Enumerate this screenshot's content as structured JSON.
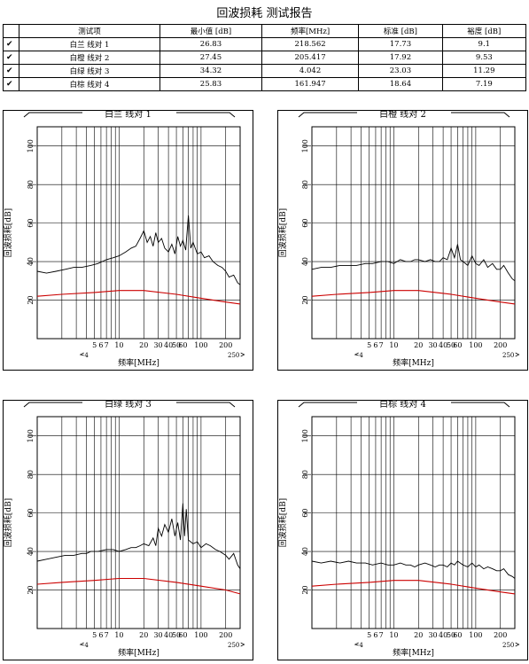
{
  "page_title": "回波损耗 测试报告",
  "table": {
    "headers": [
      "测试项",
      "最小值 [dB]",
      "频率[MHz]",
      "标准 [dB]",
      "裕度 [dB]"
    ],
    "rows": [
      {
        "check": "✔",
        "item": "白兰 线对 1",
        "min": "26.83",
        "freq": "218.562",
        "limit": "17.73",
        "margin": "9.1"
      },
      {
        "check": "✔",
        "item": "白橙 线对 2",
        "min": "27.45",
        "freq": "205.417",
        "limit": "17.92",
        "margin": "9.53"
      },
      {
        "check": "✔",
        "item": "白绿 线对 3",
        "min": "34.32",
        "freq": "4.042",
        "limit": "23.03",
        "margin": "11.29"
      },
      {
        "check": "✔",
        "item": "白棕 线对 4",
        "min": "25.83",
        "freq": "161.947",
        "limit": "18.64",
        "margin": "7.19"
      }
    ]
  },
  "chart_data": [
    {
      "type": "line",
      "title": "白兰 线对 1",
      "xlabel": "频率[MHz]",
      "ylabel": "回波损耗[dB]",
      "x_scale": "log",
      "xlim": [
        1,
        300
      ],
      "ylim": [
        0,
        110
      ],
      "x_tick_labels": [
        "5",
        "6",
        "7",
        "10",
        "20",
        "30",
        "40",
        "50",
        "60",
        "100",
        "200"
      ],
      "x_tick_values": [
        5,
        6,
        7,
        10,
        20,
        30,
        40,
        50,
        60,
        100,
        200
      ],
      "x_extra_labels": [
        {
          "label": "4",
          "value": 4
        },
        {
          "label": "250",
          "value": 250
        }
      ],
      "y_tick_labels": [
        "20",
        "40",
        "60",
        "80",
        "100"
      ],
      "y_tick_values": [
        20,
        40,
        60,
        80,
        100
      ],
      "series": [
        {
          "color": "#000000",
          "x": [
            1,
            1.3,
            1.7,
            2.2,
            2.8,
            3.5,
            4.5,
            5.5,
            7,
            8.5,
            10,
            12,
            14,
            16,
            18,
            20,
            22,
            24,
            26,
            28,
            30,
            33,
            36,
            40,
            44,
            48,
            52,
            56,
            60,
            65,
            70,
            75,
            80,
            90,
            100,
            110,
            125,
            140,
            160,
            180,
            200,
            220,
            250,
            280,
            300
          ],
          "y": [
            35,
            34,
            35,
            36,
            37,
            37,
            38,
            39,
            41,
            42,
            43,
            45,
            47,
            48,
            52,
            56,
            50,
            53,
            48,
            55,
            50,
            52,
            47,
            45,
            49,
            44,
            53,
            48,
            51,
            46,
            64,
            47,
            50,
            44,
            45,
            42,
            43,
            40,
            38,
            37,
            35,
            32,
            33,
            29,
            28
          ]
        },
        {
          "color": "#cc0000",
          "x": [
            1,
            2,
            5,
            10,
            20,
            50,
            100,
            200,
            300
          ],
          "y": [
            22,
            23,
            24,
            25,
            25,
            23,
            21,
            19,
            18
          ]
        }
      ]
    },
    {
      "type": "line",
      "title": "白橙 线对 2",
      "xlabel": "频率[MHz]",
      "ylabel": "回波损耗[dB]",
      "x_scale": "log",
      "xlim": [
        1,
        300
      ],
      "ylim": [
        0,
        110
      ],
      "x_tick_labels": [
        "5",
        "6",
        "7",
        "10",
        "20",
        "30",
        "40",
        "50",
        "60",
        "100",
        "200"
      ],
      "x_tick_values": [
        5,
        6,
        7,
        10,
        20,
        30,
        40,
        50,
        60,
        100,
        200
      ],
      "x_extra_labels": [
        {
          "label": "4",
          "value": 4
        },
        {
          "label": "250",
          "value": 250
        }
      ],
      "y_tick_labels": [
        "20",
        "40",
        "60",
        "80",
        "100"
      ],
      "y_tick_values": [
        20,
        40,
        60,
        80,
        100
      ],
      "series": [
        {
          "color": "#000000",
          "x": [
            1,
            1.3,
            1.7,
            2.2,
            2.8,
            3.5,
            4.5,
            5.5,
            7,
            8.5,
            10,
            12,
            14,
            16,
            18,
            20,
            24,
            28,
            32,
            36,
            40,
            45,
            50,
            55,
            60,
            65,
            70,
            80,
            90,
            100,
            110,
            125,
            140,
            160,
            180,
            200,
            220,
            250,
            280,
            300
          ],
          "y": [
            36,
            37,
            37,
            38,
            38,
            38,
            39,
            39,
            40,
            40,
            39,
            41,
            40,
            40,
            41,
            41,
            40,
            41,
            40,
            40,
            42,
            41,
            47,
            42,
            49,
            41,
            40,
            38,
            43,
            39,
            38,
            41,
            37,
            39,
            36,
            36,
            38,
            34,
            31,
            30
          ]
        },
        {
          "color": "#cc0000",
          "x": [
            1,
            2,
            5,
            10,
            20,
            50,
            100,
            200,
            300
          ],
          "y": [
            22,
            23,
            24,
            25,
            25,
            23,
            21,
            19,
            18
          ]
        }
      ]
    },
    {
      "type": "line",
      "title": "白绿 线对 3",
      "xlabel": "频率[MHz]",
      "ylabel": "回波损耗[dB]",
      "x_scale": "log",
      "xlim": [
        1,
        300
      ],
      "ylim": [
        0,
        110
      ],
      "x_tick_labels": [
        "5",
        "6",
        "7",
        "10",
        "20",
        "30",
        "40",
        "50",
        "60",
        "100",
        "200"
      ],
      "x_tick_values": [
        5,
        6,
        7,
        10,
        20,
        30,
        40,
        50,
        60,
        100,
        200
      ],
      "x_extra_labels": [
        {
          "label": "4",
          "value": 4
        },
        {
          "label": "250",
          "value": 250
        }
      ],
      "y_tick_labels": [
        "20",
        "40",
        "60",
        "80",
        "100"
      ],
      "y_tick_values": [
        20,
        40,
        60,
        80,
        100
      ],
      "series": [
        {
          "color": "#000000",
          "x": [
            1,
            1.3,
            1.7,
            2.2,
            2.8,
            3.5,
            4,
            4.5,
            5.5,
            7,
            8.5,
            10,
            12,
            14,
            16,
            18,
            20,
            23,
            26,
            28,
            30,
            33,
            36,
            40,
            44,
            48,
            52,
            56,
            60,
            63,
            66,
            70,
            80,
            90,
            100,
            115,
            130,
            150,
            170,
            200,
            220,
            250,
            280,
            300
          ],
          "y": [
            35,
            36,
            37,
            38,
            38,
            39,
            39,
            40,
            40,
            41,
            41,
            40,
            41,
            42,
            42,
            43,
            44,
            43,
            47,
            43,
            52,
            48,
            54,
            50,
            57,
            48,
            55,
            46,
            65,
            48,
            62,
            46,
            44,
            45,
            42,
            44,
            43,
            41,
            40,
            38,
            36,
            39,
            33,
            31
          ]
        },
        {
          "color": "#cc0000",
          "x": [
            1,
            2,
            5,
            10,
            20,
            50,
            100,
            200,
            300
          ],
          "y": [
            23,
            24,
            25,
            26,
            26,
            24,
            22,
            20,
            18
          ]
        }
      ]
    },
    {
      "type": "line",
      "title": "白棕 线对 4",
      "xlabel": "频率[MHz]",
      "ylabel": "回波损耗[dB]",
      "x_scale": "log",
      "xlim": [
        1,
        300
      ],
      "ylim": [
        0,
        110
      ],
      "x_tick_labels": [
        "5",
        "6",
        "7",
        "10",
        "20",
        "30",
        "40",
        "50",
        "60",
        "100",
        "200"
      ],
      "x_tick_values": [
        5,
        6,
        7,
        10,
        20,
        30,
        40,
        50,
        60,
        100,
        200
      ],
      "x_extra_labels": [
        {
          "label": "4",
          "value": 4
        },
        {
          "label": "250",
          "value": 250
        }
      ],
      "y_tick_labels": [
        "20",
        "40",
        "60",
        "80",
        "100"
      ],
      "y_tick_values": [
        20,
        40,
        60,
        80,
        100
      ],
      "series": [
        {
          "color": "#000000",
          "x": [
            1,
            1.3,
            1.7,
            2.2,
            2.8,
            3.5,
            4.5,
            5.5,
            7,
            8.5,
            10,
            12,
            14,
            16,
            18,
            20,
            24,
            28,
            32,
            36,
            40,
            45,
            50,
            55,
            60,
            70,
            80,
            90,
            100,
            110,
            125,
            140,
            160,
            180,
            200,
            220,
            250,
            280,
            300
          ],
          "y": [
            35,
            34,
            35,
            34,
            35,
            34,
            34,
            33,
            34,
            33,
            33,
            34,
            33,
            33,
            32,
            33,
            34,
            33,
            32,
            33,
            33,
            32,
            34,
            33,
            35,
            33,
            32,
            34,
            32,
            33,
            31,
            32,
            31,
            30,
            30,
            31,
            28,
            27,
            26
          ]
        },
        {
          "color": "#cc0000",
          "x": [
            1,
            2,
            5,
            10,
            20,
            50,
            100,
            200,
            300
          ],
          "y": [
            22,
            23,
            24,
            25,
            25,
            23,
            21,
            19,
            18
          ]
        }
      ]
    }
  ]
}
